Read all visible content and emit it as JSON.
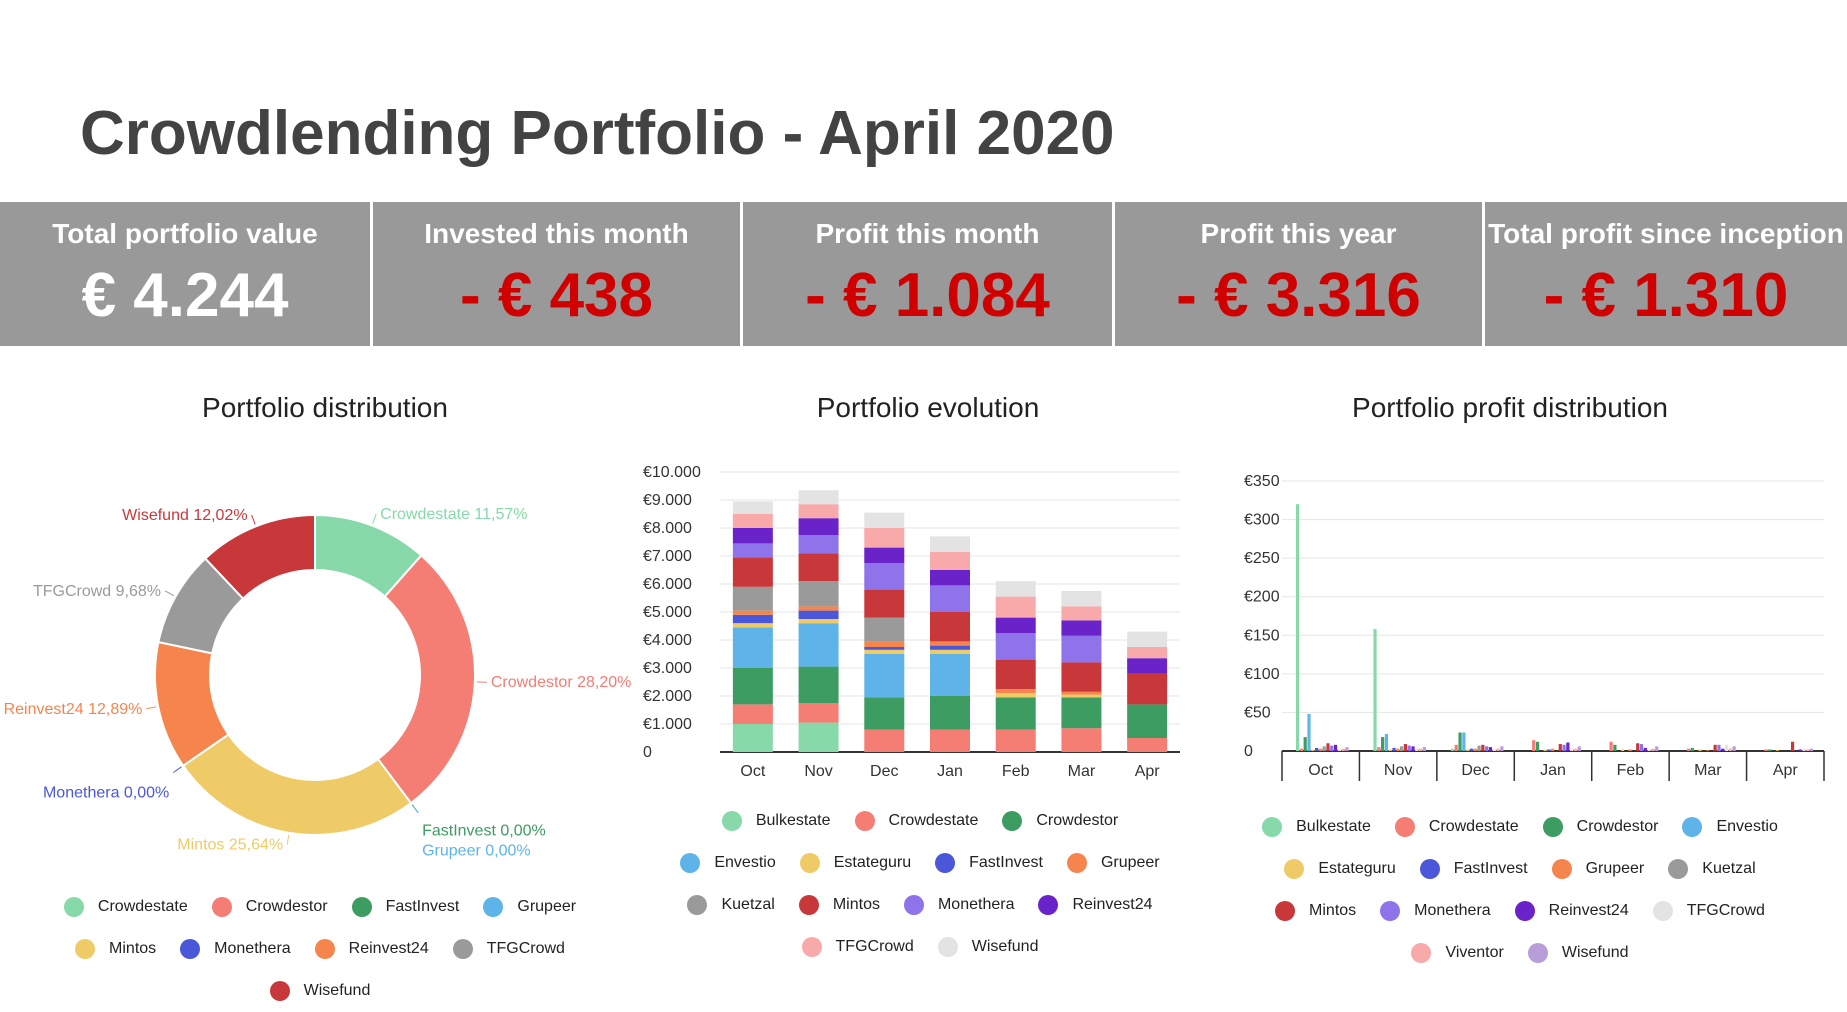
{
  "title": "Crowdlending Portfolio - April 2020",
  "kpis": [
    {
      "label": "Total portfolio value",
      "value": "€ 4.244",
      "color": "#ffffff"
    },
    {
      "label": "Invested this month",
      "value": "- € 438",
      "color": "#d00000"
    },
    {
      "label": "Profit this month",
      "value": "- € 1.084",
      "color": "#d00000"
    },
    {
      "label": "Profit this year",
      "value": "- € 3.316",
      "color": "#d00000"
    },
    {
      "label": "Total profit since inception",
      "value": "- € 1.310",
      "color": "#d00000"
    }
  ],
  "colors": {
    "Bulkestate": "#87d9aa",
    "Crowdestate": "#87d9aa",
    "Crowdestor": "#f47d74",
    "Crowdestor2": "#3d9c62",
    "Envestio": "#5eb4e8",
    "Estateguru": "#efcb67",
    "FastInvest": "#4a57d8",
    "Grupeer": "#f6854d",
    "Kuetzal": "#9a9a9a",
    "Mintos": "#c8383b",
    "Monethera": "#8f73ea",
    "Reinvest24": "#6a22c9",
    "TFGCrowd": "#f8a9a9",
    "Wisefund": "#e3e3e3",
    "Viventor": "#f8a9a9"
  },
  "chart_data": [
    {
      "type": "pie",
      "title": "Portfolio distribution",
      "slices": [
        {
          "name": "Crowdestate",
          "value": 11.57,
          "label": "Crowdestate 11,57%",
          "color": "#87d9aa"
        },
        {
          "name": "Crowdestor",
          "value": 28.2,
          "label": "Crowdestor 28,20%",
          "color": "#f47d74"
        },
        {
          "name": "FastInvest",
          "value": 0.0,
          "label": "FastInvest 0,00%",
          "color": "#3d9c62"
        },
        {
          "name": "Grupeer",
          "value": 0.0,
          "label": "Grupeer 0,00%",
          "color": "#5eb4e8"
        },
        {
          "name": "Mintos",
          "value": 25.64,
          "label": "Mintos 25,64%",
          "color": "#efcb67"
        },
        {
          "name": "Monethera",
          "value": 0.0,
          "label": "Monethera 0,00%",
          "color": "#4a57d8"
        },
        {
          "name": "Reinvest24",
          "value": 12.89,
          "label": "Reinvest24 12,89%",
          "color": "#f6854d"
        },
        {
          "name": "TFGCrowd",
          "value": 9.68,
          "label": "TFGCrowd 9,68%",
          "color": "#9a9a9a"
        },
        {
          "name": "Wisefund",
          "value": 12.02,
          "label": "Wisefund 12,02%",
          "color": "#c8383b"
        }
      ],
      "legend": [
        "Crowdestate",
        "Crowdestor",
        "FastInvest",
        "Grupeer",
        "Mintos",
        "Monethera",
        "Reinvest24",
        "TFGCrowd",
        "Wisefund"
      ],
      "legend_colors": [
        "#87d9aa",
        "#f47d74",
        "#3d9c62",
        "#5eb4e8",
        "#efcb67",
        "#4a57d8",
        "#f6854d",
        "#9a9a9a",
        "#c8383b"
      ]
    },
    {
      "type": "bar",
      "stacked": true,
      "title": "Portfolio evolution",
      "categories": [
        "Oct",
        "Nov",
        "Dec",
        "Jan",
        "Feb",
        "Mar",
        "Apr"
      ],
      "ylim": [
        0,
        10000
      ],
      "yticks": [
        0,
        1000,
        2000,
        3000,
        4000,
        5000,
        6000,
        7000,
        8000,
        9000,
        10000
      ],
      "ytick_labels": [
        "0",
        "€1.000",
        "€2.000",
        "€3.000",
        "€4.000",
        "€5.000",
        "€6.000",
        "€7.000",
        "€8.000",
        "€9.000",
        "€10.000"
      ],
      "series": [
        {
          "name": "Bulkestate",
          "color": "#87d9aa",
          "values": [
            1000,
            1050,
            0,
            0,
            0,
            0,
            0
          ]
        },
        {
          "name": "Crowdestate",
          "color": "#f47d74",
          "values": [
            700,
            700,
            800,
            800,
            800,
            850,
            500
          ]
        },
        {
          "name": "Crowdestor",
          "color": "#3d9c62",
          "values": [
            1300,
            1300,
            1150,
            1200,
            1150,
            1100,
            1200
          ]
        },
        {
          "name": "Envestio",
          "color": "#5eb4e8",
          "values": [
            1450,
            1550,
            1550,
            1500,
            0,
            0,
            0
          ]
        },
        {
          "name": "Estateguru",
          "color": "#efcb67",
          "values": [
            150,
            150,
            150,
            150,
            150,
            100,
            0
          ]
        },
        {
          "name": "FastInvest",
          "color": "#4a57d8",
          "values": [
            300,
            300,
            100,
            150,
            0,
            0,
            0
          ]
        },
        {
          "name": "Grupeer",
          "color": "#f6854d",
          "values": [
            150,
            150,
            200,
            150,
            150,
            100,
            0
          ]
        },
        {
          "name": "Kuetzal",
          "color": "#9a9a9a",
          "values": [
            850,
            900,
            850,
            0,
            0,
            0,
            0
          ]
        },
        {
          "name": "Mintos",
          "color": "#c8383b",
          "values": [
            1050,
            1000,
            1000,
            1050,
            1050,
            1050,
            1100
          ]
        },
        {
          "name": "Monethera",
          "color": "#8f73ea",
          "values": [
            500,
            650,
            950,
            950,
            950,
            950,
            0
          ]
        },
        {
          "name": "Reinvest24",
          "color": "#6a22c9",
          "values": [
            550,
            600,
            550,
            550,
            550,
            550,
            550
          ]
        },
        {
          "name": "TFGCrowd",
          "color": "#f8a9a9",
          "values": [
            500,
            500,
            700,
            650,
            750,
            500,
            400
          ]
        },
        {
          "name": "Wisefund",
          "color": "#e3e3e3",
          "values": [
            450,
            500,
            550,
            550,
            550,
            550,
            550
          ]
        }
      ]
    },
    {
      "type": "bar",
      "stacked": false,
      "title": "Portfolio profit distribution",
      "categories": [
        "Oct",
        "Nov",
        "Dec",
        "Jan",
        "Feb",
        "Mar",
        "Apr"
      ],
      "ylim": [
        0,
        350
      ],
      "yticks": [
        0,
        50,
        100,
        150,
        200,
        250,
        300,
        350
      ],
      "ytick_labels": [
        "0",
        "€50",
        "€100",
        "€150",
        "€200",
        "€250",
        "€300",
        "€350"
      ],
      "series": [
        {
          "name": "Bulkestate",
          "color": "#87d9aa",
          "values": [
            320,
            158,
            3,
            0,
            0,
            0,
            0
          ]
        },
        {
          "name": "Crowdestate",
          "color": "#f47d74",
          "values": [
            3,
            5,
            8,
            14,
            12,
            3,
            2
          ]
        },
        {
          "name": "Crowdestor",
          "color": "#3d9c62",
          "values": [
            18,
            18,
            24,
            12,
            8,
            4,
            2
          ]
        },
        {
          "name": "Envestio",
          "color": "#5eb4e8",
          "values": [
            48,
            22,
            24,
            0,
            0,
            0,
            0
          ]
        },
        {
          "name": "Estateguru",
          "color": "#efcb67",
          "values": [
            2,
            2,
            2,
            2,
            2,
            2,
            1
          ]
        },
        {
          "name": "FastInvest",
          "color": "#4a57d8",
          "values": [
            4,
            4,
            3,
            2,
            0,
            0,
            0
          ]
        },
        {
          "name": "Grupeer",
          "color": "#f6854d",
          "values": [
            3,
            3,
            3,
            3,
            2,
            1,
            0
          ]
        },
        {
          "name": "Kuetzal",
          "color": "#9a9a9a",
          "values": [
            6,
            6,
            7,
            0,
            0,
            0,
            0
          ]
        },
        {
          "name": "Mintos",
          "color": "#c8383b",
          "values": [
            10,
            9,
            8,
            9,
            10,
            8,
            12
          ]
        },
        {
          "name": "Monethera",
          "color": "#8f73ea",
          "values": [
            7,
            7,
            6,
            8,
            9,
            8,
            0
          ]
        },
        {
          "name": "Reinvest24",
          "color": "#6a22c9",
          "values": [
            8,
            6,
            5,
            11,
            4,
            3,
            2
          ]
        },
        {
          "name": "TFGCrowd",
          "color": "#e3e3e3",
          "values": [
            2,
            3,
            2,
            3,
            2,
            8,
            3
          ]
        },
        {
          "name": "Viventor",
          "color": "#f8a9a9",
          "values": [
            3,
            3,
            3,
            3,
            3,
            3,
            2
          ]
        },
        {
          "name": "Wisefund",
          "color": "#b79ed8",
          "values": [
            5,
            5,
            6,
            6,
            6,
            6,
            3
          ]
        }
      ],
      "legend": [
        "Bulkestate",
        "Crowdestate",
        "Crowdestor",
        "Envestio",
        "Estateguru",
        "FastInvest",
        "Grupeer",
        "Kuetzal",
        "Mintos",
        "Monethera",
        "Reinvest24",
        "TFGCrowd",
        "Viventor",
        "Wisefund"
      ],
      "legend_colors": [
        "#87d9aa",
        "#f47d74",
        "#3d9c62",
        "#5eb4e8",
        "#efcb67",
        "#4a57d8",
        "#f6854d",
        "#9a9a9a",
        "#c8383b",
        "#8f73ea",
        "#6a22c9",
        "#e3e3e3",
        "#f8a9a9",
        "#b79ed8"
      ]
    }
  ]
}
